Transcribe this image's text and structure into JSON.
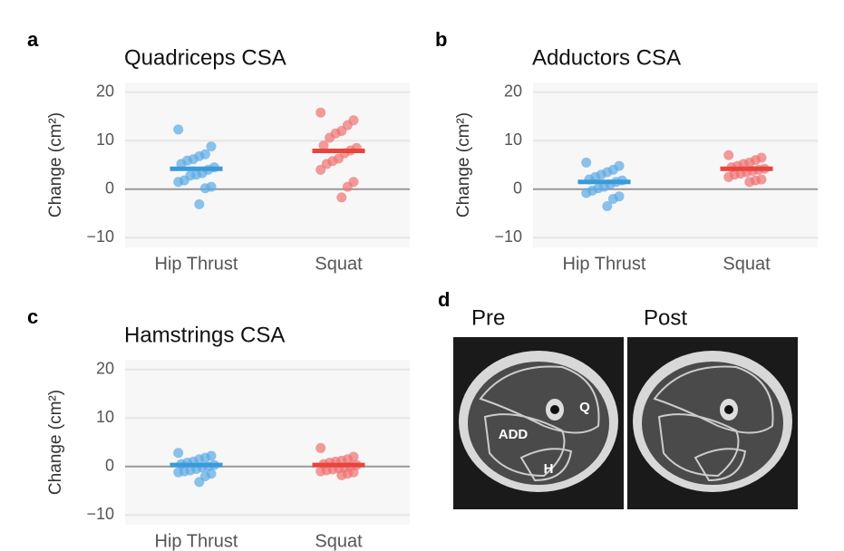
{
  "chart_data": [
    {
      "type": "strip",
      "panel": "a",
      "title": "Quadriceps CSA",
      "ylabel": "Change (cm²)",
      "categories": [
        "Hip Thrust",
        "Squat"
      ],
      "colors": [
        "#5aa9e6",
        "#f07070"
      ],
      "mean_colors": [
        "#3a9ad9",
        "#e8453c"
      ],
      "points": [
        [
          12.3,
          8.8,
          7.2,
          6.8,
          6.2,
          5.9,
          5.2,
          4.5,
          4.0,
          3.3,
          3.0,
          2.8,
          1.8,
          1.5,
          0.5,
          0.2,
          -3.1
        ],
        [
          15.8,
          14.2,
          13.2,
          12.0,
          11.5,
          10.6,
          9.0,
          8.5,
          8.0,
          7.4,
          6.3,
          5.8,
          5.2,
          4.0,
          1.5,
          0.5,
          -1.7
        ]
      ],
      "means": [
        4.2,
        7.9
      ],
      "ylim": [
        -12,
        22
      ],
      "yticks": [
        20,
        10,
        0,
        {
          "value": -10,
          "label": "−10"
        }
      ],
      "grid": true
    },
    {
      "type": "strip",
      "panel": "b",
      "title": "Adductors CSA",
      "ylabel": "Change (cm²)",
      "categories": [
        "Hip Thrust",
        "Squat"
      ],
      "colors": [
        "#5aa9e6",
        "#f07070"
      ],
      "mean_colors": [
        "#3a9ad9",
        "#e8453c"
      ],
      "points": [
        [
          5.5,
          4.8,
          4.0,
          3.5,
          3.0,
          2.5,
          2.0,
          1.8,
          1.5,
          1.0,
          0.5,
          0.2,
          -0.3,
          -0.8,
          -1.5,
          -2.0,
          -3.5
        ],
        [
          7.0,
          6.5,
          6.0,
          5.5,
          5.2,
          4.8,
          4.5,
          4.2,
          4.0,
          3.8,
          3.5,
          3.2,
          3.0,
          2.5,
          2.0,
          1.8,
          1.5
        ]
      ],
      "means": [
        1.5,
        4.2
      ],
      "ylim": [
        -12,
        22
      ],
      "yticks": [
        20,
        10,
        0,
        {
          "value": -10,
          "label": "−10"
        }
      ],
      "grid": true
    },
    {
      "type": "strip",
      "panel": "c",
      "title": "Hamstrings CSA",
      "ylabel": "Change (cm²)",
      "categories": [
        "Hip Thrust",
        "Squat"
      ],
      "colors": [
        "#5aa9e6",
        "#f07070"
      ],
      "mean_colors": [
        "#3a9ad9",
        "#e8453c"
      ],
      "points": [
        [
          2.8,
          2.2,
          1.8,
          1.5,
          1.0,
          0.8,
          0.5,
          0.3,
          0.0,
          -0.2,
          -0.5,
          -0.8,
          -1.0,
          -1.2,
          -1.5,
          -2.0,
          -3.2
        ],
        [
          3.8,
          2.0,
          1.5,
          1.2,
          1.0,
          0.8,
          0.5,
          0.3,
          0.0,
          -0.2,
          -0.4,
          -0.6,
          -0.8,
          -1.0,
          -1.2,
          -1.5,
          -1.8
        ]
      ],
      "means": [
        0.3,
        0.3
      ],
      "ylim": [
        -12,
        22
      ],
      "yticks": [
        20,
        10,
        0,
        {
          "value": -10,
          "label": "−10"
        }
      ],
      "grid": true
    }
  ],
  "image_panel": {
    "panel": "d",
    "captions": [
      "Pre",
      "Post"
    ],
    "regions": [
      "Q",
      "ADD",
      "H"
    ]
  }
}
